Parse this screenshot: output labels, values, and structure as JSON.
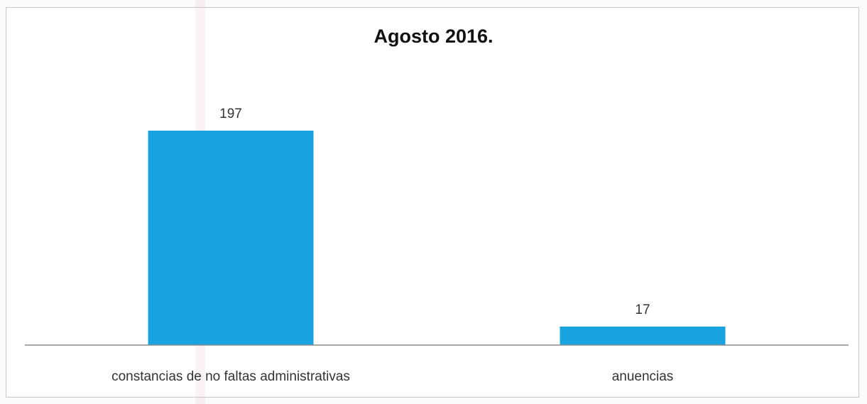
{
  "chart_data": {
    "type": "bar",
    "title": "Agosto 2016.",
    "categories": [
      "constancias de no faltas administrativas",
      "anuencias"
    ],
    "values": [
      197,
      17
    ],
    "data_labels": [
      "197",
      "17"
    ],
    "xlabel": "",
    "ylabel": "",
    "ylim": [
      0,
      197
    ],
    "grid": false,
    "legend": "none",
    "bar_color": "#19a3e0"
  }
}
